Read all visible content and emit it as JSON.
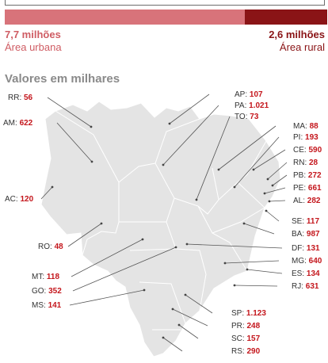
{
  "summary": {
    "urban": {
      "value": "7,7 milhões",
      "label": "Área urbana",
      "color": "#d8737a"
    },
    "rural": {
      "value": "2,6 milhões",
      "label": "Área rural",
      "color": "#8a1416"
    }
  },
  "section_title": "Valores em milhares",
  "chart_data": [
    {
      "type": "bar",
      "stacked": true,
      "categories": [
        "Área urbana",
        "Área rural"
      ],
      "values": [
        7.7,
        2.6
      ],
      "unit": "milhões"
    },
    {
      "type": "table",
      "title": "Valores em milhares",
      "states": [
        {
          "code": "RR",
          "value": 56
        },
        {
          "code": "AM",
          "value": 622
        },
        {
          "code": "AC",
          "value": 120
        },
        {
          "code": "RO",
          "value": 48
        },
        {
          "code": "MT",
          "value": 118
        },
        {
          "code": "GO",
          "value": 352
        },
        {
          "code": "MS",
          "value": 141
        },
        {
          "code": "AP",
          "value": 107
        },
        {
          "code": "PA",
          "value": 1021
        },
        {
          "code": "TO",
          "value": 73
        },
        {
          "code": "MA",
          "value": 88
        },
        {
          "code": "PI",
          "value": 193
        },
        {
          "code": "CE",
          "value": 590
        },
        {
          "code": "RN",
          "value": 28
        },
        {
          "code": "PB",
          "value": 272
        },
        {
          "code": "PE",
          "value": 661
        },
        {
          "code": "AL",
          "value": 282
        },
        {
          "code": "SE",
          "value": 117
        },
        {
          "code": "BA",
          "value": 987
        },
        {
          "code": "DF",
          "value": 131
        },
        {
          "code": "MG",
          "value": 640
        },
        {
          "code": "ES",
          "value": 134
        },
        {
          "code": "RJ",
          "value": 631
        },
        {
          "code": "SP",
          "value": 1123
        },
        {
          "code": "PR",
          "value": 248
        },
        {
          "code": "SC",
          "value": 157
        },
        {
          "code": "RS",
          "value": 290
        }
      ],
      "value_labels": {
        "RR": "56",
        "AM": "622",
        "AC": "120",
        "RO": "48",
        "MT": "118",
        "GO": "352",
        "MS": "141",
        "AP": "107",
        "PA": "1.021",
        "TO": "73",
        "MA": "88",
        "PI": "193",
        "CE": "590",
        "RN": "28",
        "PB": "272",
        "PE": "661",
        "AL": "282",
        "SE": "117",
        "BA": "987",
        "DF": "131",
        "MG": "640",
        "ES": "134",
        "RJ": "631",
        "SP": "1.123",
        "PR": "248",
        "SC": "157",
        "RS": "290"
      }
    }
  ]
}
